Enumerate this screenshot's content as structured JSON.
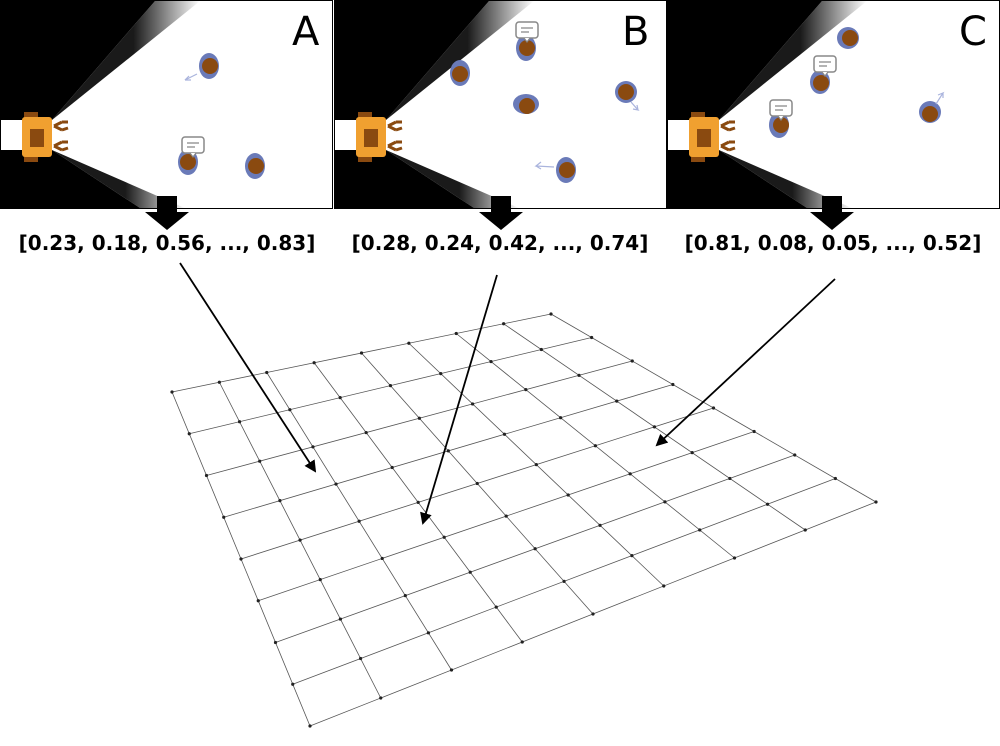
{
  "panels": [
    {
      "label": "A",
      "vector": "[0.23, 0.18, 0.56, ..., 0.83]"
    },
    {
      "label": "B",
      "vector": "[0.28, 0.24, 0.42, ..., 0.74]"
    },
    {
      "label": "C",
      "vector": "[0.81, 0.08, 0.05, ..., 0.52]"
    }
  ],
  "colors": {
    "robot_body": "#f0a030",
    "robot_dark": "#8a4a10",
    "person_shirt": "#6a7ab8",
    "person_head": "#8a4a10",
    "speech_bubble": "#888888",
    "grid_line": "#555555"
  },
  "icons": [
    "robot-icon",
    "person-icon",
    "speech-bubble-icon",
    "down-arrow-icon"
  ]
}
